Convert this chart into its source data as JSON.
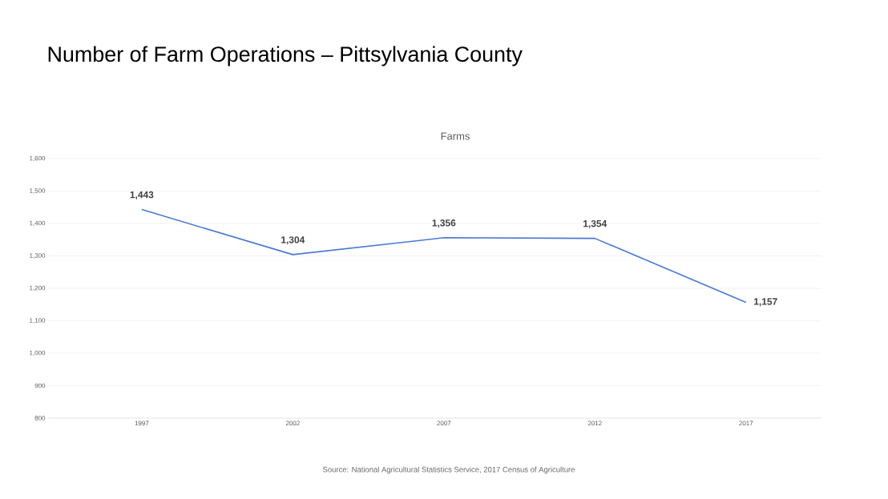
{
  "chart_data": {
    "type": "line",
    "title": "Number of Farm Operations – Pittsylvania County",
    "subtitle": "Farms",
    "categories": [
      "1997",
      "2002",
      "2007",
      "2012",
      "2017"
    ],
    "values": [
      1443,
      1304,
      1356,
      1354,
      1157
    ],
    "value_labels": [
      "1,443",
      "1,304",
      "1,356",
      "1,354",
      "1,157"
    ],
    "color": "#4a78d4",
    "ylim": [
      800,
      1600
    ],
    "yticks": [
      {
        "value": 800,
        "label": "800"
      },
      {
        "value": 900,
        "label": "900"
      },
      {
        "value": 1000,
        "label": "1,000"
      },
      {
        "value": 1100,
        "label": "1,100"
      },
      {
        "value": 1200,
        "label": "1,200"
      },
      {
        "value": 1300,
        "label": "1,300"
      },
      {
        "value": 1400,
        "label": "1,400"
      },
      {
        "value": 1500,
        "label": "1,500"
      },
      {
        "value": 1600,
        "label": "1,600"
      }
    ],
    "grid": "y",
    "marker": "none",
    "line_style": "solid",
    "legend": false,
    "annotations": [
      "Source: National Agricultural Statistics Service, 2017 Census of Agriculture"
    ]
  }
}
